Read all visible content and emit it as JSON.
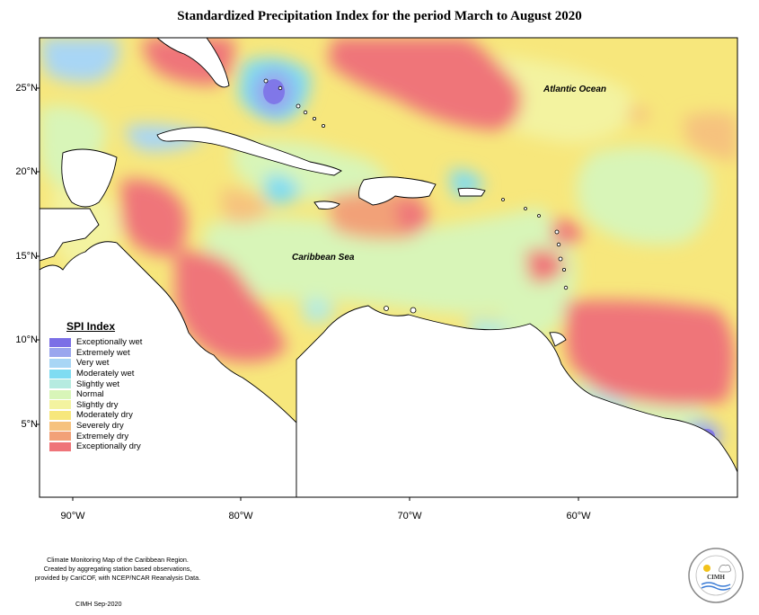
{
  "title": "Standardized Precipitation Index for the period March to August 2020",
  "axes": {
    "latitude_ticks": [
      "25°N",
      "20°N",
      "15°N",
      "10°N",
      "5°N"
    ],
    "longitude_ticks": [
      "90°W",
      "80°W",
      "70°W",
      "60°W"
    ]
  },
  "labels": {
    "ocean": "Atlantic Ocean",
    "sea": "Caribbean Sea"
  },
  "legend": {
    "title": "SPI Index",
    "items": [
      {
        "label": "Exceptionally wet",
        "color": "#7b6fe6"
      },
      {
        "label": "Extremely wet",
        "color": "#9aa6ee"
      },
      {
        "label": "Very wet",
        "color": "#a8d6f5"
      },
      {
        "label": "Moderately wet",
        "color": "#7fdcf2"
      },
      {
        "label": "Slightly wet",
        "color": "#b5ebe0"
      },
      {
        "label": "Normal",
        "color": "#d8f5b8"
      },
      {
        "label": "Slightly dry",
        "color": "#f3f3a0"
      },
      {
        "label": "Moderately dry",
        "color": "#f7e77c"
      },
      {
        "label": "Severely dry",
        "color": "#f6c27e"
      },
      {
        "label": "Extremely dry",
        "color": "#f2a178"
      },
      {
        "label": "Exceptionally dry",
        "color": "#ef7479"
      }
    ]
  },
  "footnote": {
    "lines": [
      "Climate Monitoring Map of the Caribbean Region.",
      "Created by aggregating station based observations,",
      "provided by CariCOF, with NCEP/NCAR Reanalysis Data."
    ],
    "credit": "CIMH Sep-2020"
  },
  "logo": {
    "text": "CIMH"
  }
}
